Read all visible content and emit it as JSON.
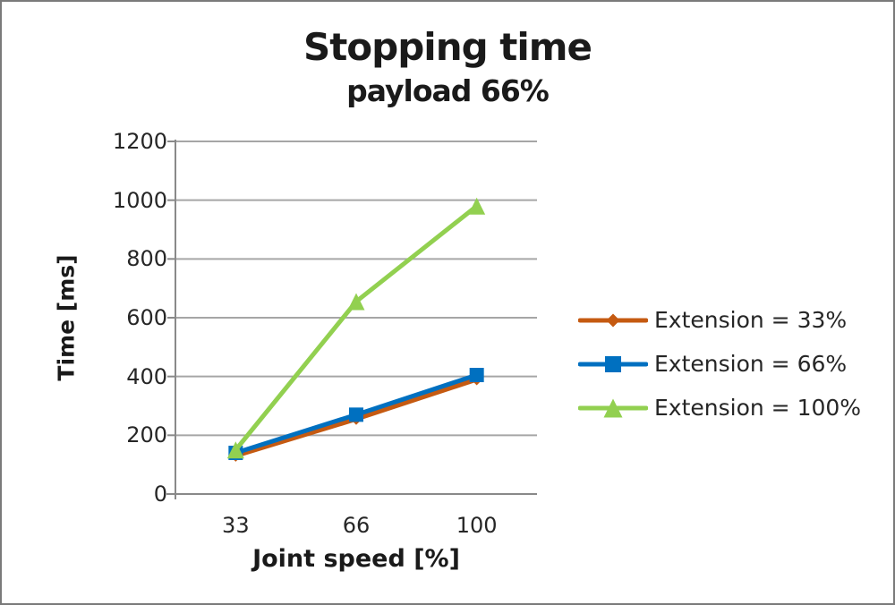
{
  "window": {
    "background_color": "#ffffff",
    "frame_border_color": "#7a7a7a"
  },
  "title": "Stopping time",
  "subtitle": "payload 66%",
  "chart_data": {
    "type": "line",
    "title": "Stopping time",
    "subtitle": "payload 66%",
    "xlabel": "Joint speed [%]",
    "ylabel": "Time [ms]",
    "categories": [
      "33",
      "66",
      "100"
    ],
    "series": [
      {
        "name": "Extension = 33%",
        "values": [
          130,
          255,
          390
        ],
        "color": "#C55A11",
        "marker": "diamond",
        "marker_size": 13
      },
      {
        "name": "Extension = 66%",
        "values": [
          140,
          270,
          405
        ],
        "color": "#0070C0",
        "marker": "square",
        "marker_size": 16
      },
      {
        "name": "Extension = 100%",
        "values": [
          150,
          655,
          980
        ],
        "color": "#92D050",
        "marker": "triangle",
        "marker_size": 19
      }
    ],
    "ylim": [
      0,
      1200
    ],
    "yticks": [
      0,
      200,
      400,
      600,
      800,
      1000,
      1200
    ],
    "grid": "horizontal",
    "gridline_color": "#A6A6A6",
    "axis_line_color": "#898989",
    "tick_text_color": "#262626",
    "legend_position": "right",
    "line_width": 5
  }
}
